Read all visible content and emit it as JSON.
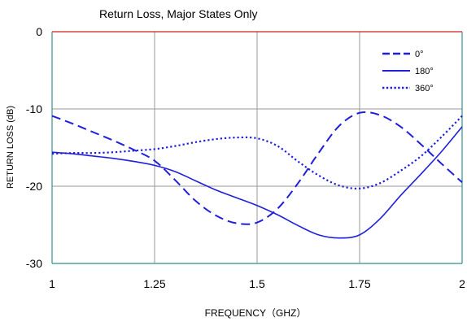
{
  "chart_data": {
    "type": "line",
    "title": "Return Loss, Major States Only",
    "xlabel": "FREQUENCY（GHZ）",
    "ylabel": "RETURN LOSS (dB)",
    "xlim": [
      1,
      2
    ],
    "ylim": [
      -30,
      0
    ],
    "x_ticks": [
      1,
      1.25,
      1.5,
      1.75,
      2
    ],
    "x_tick_labels": [
      "1",
      "1.25",
      "1.5",
      "1.75",
      "2"
    ],
    "y_ticks": [
      0,
      -10,
      -20,
      -30
    ],
    "y_tick_labels": [
      "0",
      "-10",
      "-20",
      "-30"
    ],
    "grid": true,
    "legend_position": "top-right",
    "colors": {
      "series": "#1f1fdd",
      "top_frame": "#cc2222",
      "side_frame": "#2f8f8f",
      "grid": "#9a9a9a"
    },
    "series": [
      {
        "name": "0°",
        "style": "dashed",
        "x": [
          1.0,
          1.05,
          1.1,
          1.15,
          1.2,
          1.25,
          1.3,
          1.35,
          1.4,
          1.45,
          1.5,
          1.55,
          1.6,
          1.65,
          1.7,
          1.75,
          1.8,
          1.85,
          1.9,
          1.95,
          2.0
        ],
        "y": [
          -10.9,
          -11.9,
          -13.0,
          -14.1,
          -15.3,
          -16.7,
          -19.2,
          -21.9,
          -23.8,
          -24.8,
          -24.7,
          -22.9,
          -19.6,
          -15.7,
          -12.2,
          -10.5,
          -10.8,
          -12.3,
          -14.6,
          -17.1,
          -19.5
        ]
      },
      {
        "name": "180°",
        "style": "solid",
        "x": [
          1.0,
          1.05,
          1.1,
          1.15,
          1.2,
          1.25,
          1.3,
          1.35,
          1.4,
          1.45,
          1.5,
          1.55,
          1.6,
          1.65,
          1.7,
          1.75,
          1.8,
          1.85,
          1.9,
          1.95,
          2.0
        ],
        "y": [
          -15.6,
          -15.8,
          -16.1,
          -16.4,
          -16.8,
          -17.3,
          -18.1,
          -19.3,
          -20.5,
          -21.5,
          -22.5,
          -23.7,
          -25.1,
          -26.3,
          -26.7,
          -26.3,
          -24.2,
          -21.2,
          -18.4,
          -15.5,
          -12.3
        ]
      },
      {
        "name": "360°",
        "style": "dotted",
        "x": [
          1.0,
          1.05,
          1.1,
          1.15,
          1.2,
          1.25,
          1.3,
          1.35,
          1.4,
          1.45,
          1.5,
          1.55,
          1.6,
          1.65,
          1.7,
          1.75,
          1.8,
          1.85,
          1.9,
          1.95,
          2.0
        ],
        "y": [
          -15.8,
          -15.7,
          -15.7,
          -15.6,
          -15.4,
          -15.2,
          -14.8,
          -14.3,
          -13.9,
          -13.7,
          -13.8,
          -14.8,
          -16.8,
          -18.6,
          -19.9,
          -20.3,
          -19.6,
          -18.0,
          -16.1,
          -13.6,
          -10.9
        ]
      }
    ]
  }
}
